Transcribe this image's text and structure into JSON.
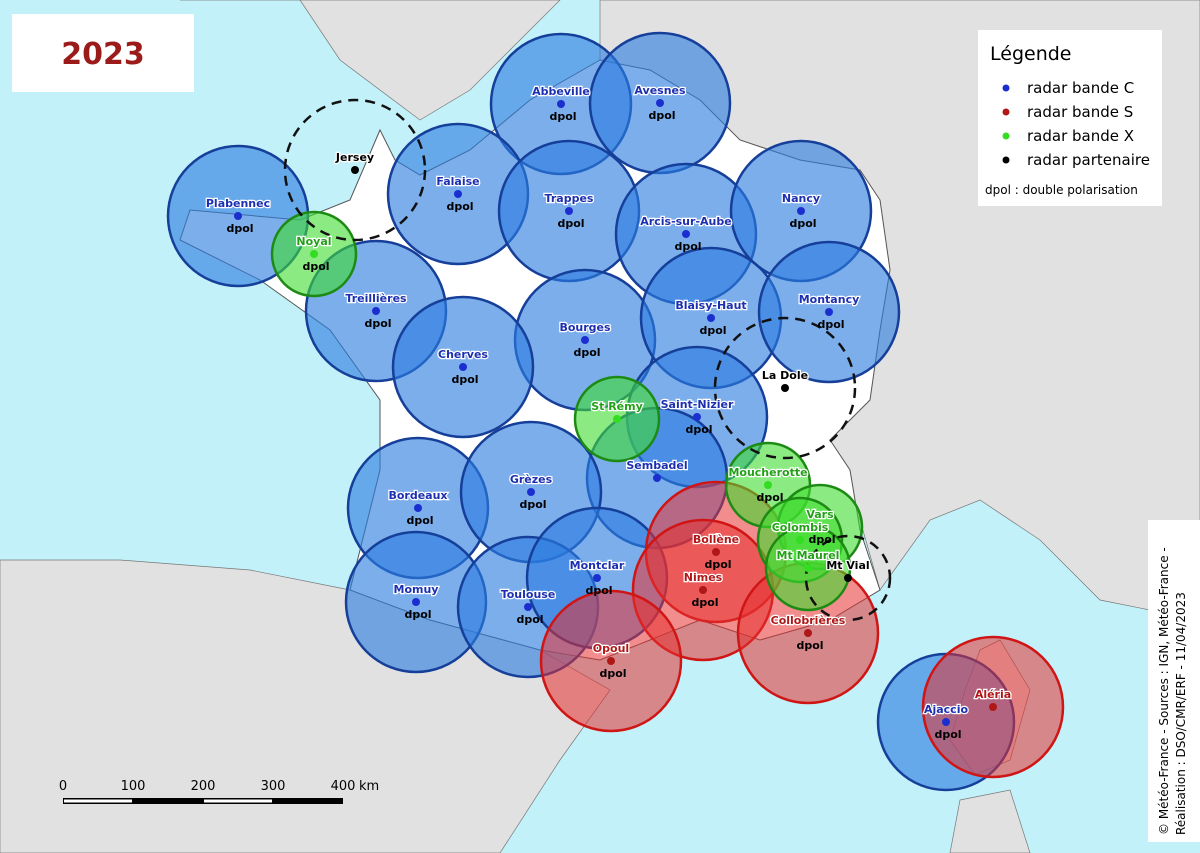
{
  "title": "2023",
  "legend": {
    "title": "Légende",
    "items": [
      {
        "band": "C",
        "label": "radar bande C",
        "color": "#1b2fd0"
      },
      {
        "band": "S",
        "label": "radar bande S",
        "color": "#b01818"
      },
      {
        "band": "X",
        "label": "radar bande X",
        "color": "#33dd22"
      },
      {
        "band": "P",
        "label": "radar partenaire",
        "color": "#000000"
      }
    ],
    "note": "dpol : double polarisation"
  },
  "radars": [
    {
      "name": "Abbeville",
      "band": "C",
      "dpol": "dpol"
    },
    {
      "name": "Avesnes",
      "band": "C",
      "dpol": "dpol"
    },
    {
      "name": "Plabennec",
      "band": "C",
      "dpol": "dpol"
    },
    {
      "name": "Falaise",
      "band": "C",
      "dpol": "dpol"
    },
    {
      "name": "Trappes",
      "band": "C",
      "dpol": "dpol"
    },
    {
      "name": "Arcis-sur-Aube",
      "band": "C",
      "dpol": "dpol"
    },
    {
      "name": "Nancy",
      "band": "C",
      "dpol": "dpol"
    },
    {
      "name": "Treillières",
      "band": "C",
      "dpol": "dpol"
    },
    {
      "name": "Bourges",
      "band": "C",
      "dpol": "dpol"
    },
    {
      "name": "Blaisy-Haut",
      "band": "C",
      "dpol": "dpol"
    },
    {
      "name": "Montancy",
      "band": "C",
      "dpol": "dpol"
    },
    {
      "name": "Cherves",
      "band": "C",
      "dpol": "dpol"
    },
    {
      "name": "Saint-Nizier",
      "band": "C",
      "dpol": "dpol"
    },
    {
      "name": "Sembadel",
      "band": "C",
      "dpol": null
    },
    {
      "name": "Bordeaux",
      "band": "C",
      "dpol": "dpol"
    },
    {
      "name": "Grèzes",
      "band": "C",
      "dpol": "dpol"
    },
    {
      "name": "Momuy",
      "band": "C",
      "dpol": "dpol"
    },
    {
      "name": "Toulouse",
      "band": "C",
      "dpol": "dpol"
    },
    {
      "name": "Montclar",
      "band": "C",
      "dpol": "dpol"
    },
    {
      "name": "Ajaccio",
      "band": "C",
      "dpol": "dpol"
    },
    {
      "name": "Bollène",
      "band": "S",
      "dpol": "dpol"
    },
    {
      "name": "Nimes",
      "band": "S",
      "dpol": "dpol"
    },
    {
      "name": "Opoul",
      "band": "S",
      "dpol": "dpol"
    },
    {
      "name": "Collobrières",
      "band": "S",
      "dpol": "dpol"
    },
    {
      "name": "Aléria",
      "band": "S",
      "dpol": null
    },
    {
      "name": "Noyal",
      "band": "X",
      "dpol": "dpol"
    },
    {
      "name": "St Rémy",
      "band": "X",
      "dpol": null
    },
    {
      "name": "Moucherotte",
      "band": "X",
      "dpol": "dpol"
    },
    {
      "name": "Vars",
      "band": "X",
      "dpol": "dpol"
    },
    {
      "name": "Colombis",
      "band": "X",
      "dpol": null
    },
    {
      "name": "Mt Maurel",
      "band": "X",
      "dpol": null
    },
    {
      "name": "Jersey",
      "band": "P",
      "dpol": null
    },
    {
      "name": "La Dole",
      "band": "P",
      "dpol": null
    },
    {
      "name": "Mt Vial",
      "band": "P",
      "dpol": null
    }
  ],
  "scale": {
    "ticks": [
      "0",
      "100",
      "200",
      "300",
      "400"
    ],
    "unit": "km"
  },
  "credits": [
    "© Météo-France - Sources : IGN, Météo-France -",
    "Réalisation : DSO/CMR/ERF - 11/04/2023"
  ]
}
